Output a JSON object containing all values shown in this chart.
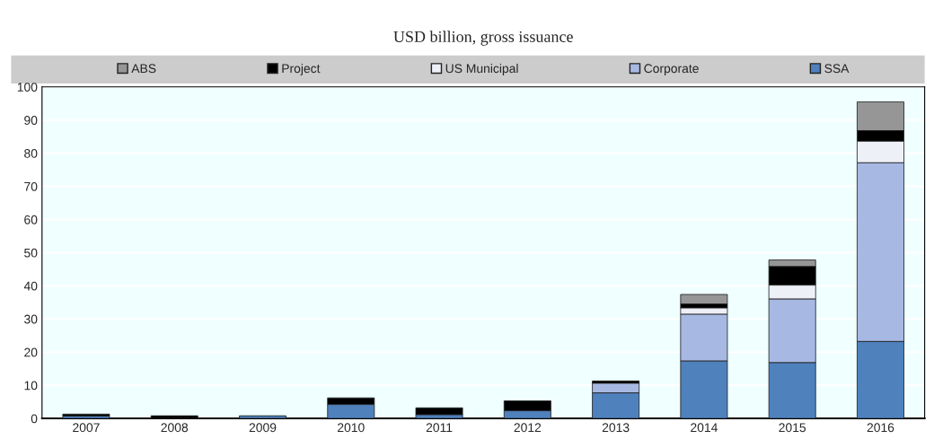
{
  "chart_data": {
    "type": "bar",
    "title": "USD billion, gross issuance",
    "stacked": true,
    "grid": "y",
    "legend": "top",
    "categories": [
      "2007",
      "2008",
      "2009",
      "2010",
      "2011",
      "2012",
      "2013",
      "2014",
      "2015",
      "2016"
    ],
    "ylim": [
      0,
      100
    ],
    "yticks": [
      0,
      10,
      20,
      30,
      40,
      50,
      60,
      70,
      80,
      90,
      100
    ],
    "series": [
      {
        "name": "SSA",
        "color": "#4f81bd",
        "values": [
          0.7,
          0,
          0.8,
          4.2,
          1.1,
          2.3,
          7.7,
          17.3,
          16.8,
          23.2
        ]
      },
      {
        "name": "Corporate",
        "color": "#a7b9e3",
        "values": [
          0,
          0,
          0,
          0,
          0,
          0,
          2.9,
          14.1,
          19.2,
          53.9
        ]
      },
      {
        "name": "US Municipal",
        "color": "#eef0f8",
        "values": [
          0,
          0,
          0,
          0,
          0,
          0,
          0,
          1.9,
          4.2,
          6.5
        ]
      },
      {
        "name": "Project",
        "color": "#000000",
        "values": [
          0.6,
          0.8,
          0,
          2.0,
          2.1,
          3.0,
          0.7,
          1.2,
          5.6,
          3.2
        ]
      },
      {
        "name": "ABS",
        "color": "#969696",
        "values": [
          0,
          0,
          0,
          0,
          0,
          0,
          0,
          2.9,
          2.0,
          8.7
        ]
      }
    ]
  }
}
